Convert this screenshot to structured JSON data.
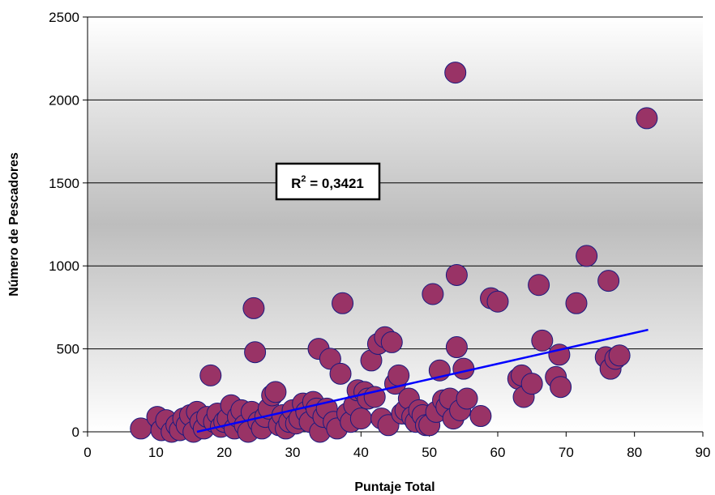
{
  "chart_data": {
    "type": "scatter",
    "xlabel": "Puntaje Total",
    "ylabel": "Número de Pescadores",
    "xlim": [
      0,
      90
    ],
    "ylim": [
      0,
      2500
    ],
    "x_ticks": [
      "0",
      "10",
      "20",
      "30",
      "40",
      "50",
      "60",
      "70",
      "80",
      "90"
    ],
    "y_ticks": [
      "0",
      "500",
      "1000",
      "1500",
      "2000",
      "2500"
    ],
    "grid": "horizontal",
    "annotation": {
      "r2_label": "R",
      "r2_exp": "2",
      "r2_value": " = 0,3421"
    },
    "colors": {
      "marker": "#993366",
      "marker_edge": "#1a1a80",
      "trendline": "#0000ff"
    },
    "trendline": {
      "x": [
        16,
        82
      ],
      "y": [
        0,
        615
      ]
    },
    "points": [
      [
        7.8,
        20
      ],
      [
        10.2,
        90
      ],
      [
        10.8,
        10
      ],
      [
        11.5,
        70
      ],
      [
        12.3,
        0
      ],
      [
        13,
        40
      ],
      [
        13.5,
        10
      ],
      [
        14,
        80
      ],
      [
        14.5,
        40
      ],
      [
        15,
        100
      ],
      [
        15.5,
        0
      ],
      [
        16,
        120
      ],
      [
        16.5,
        60
      ],
      [
        17,
        20
      ],
      [
        17.5,
        90
      ],
      [
        18,
        340
      ],
      [
        18.5,
        60
      ],
      [
        19,
        110
      ],
      [
        19.5,
        30
      ],
      [
        20,
        60
      ],
      [
        20.5,
        80
      ],
      [
        21,
        160
      ],
      [
        21.5,
        20
      ],
      [
        22,
        90
      ],
      [
        22.5,
        130
      ],
      [
        23,
        40
      ],
      [
        23.5,
        0
      ],
      [
        24,
        120
      ],
      [
        24.3,
        745
      ],
      [
        24.5,
        480
      ],
      [
        25,
        60
      ],
      [
        25.5,
        20
      ],
      [
        26,
        90
      ],
      [
        26.5,
        140
      ],
      [
        27,
        220
      ],
      [
        27.5,
        240
      ],
      [
        28,
        40
      ],
      [
        28.5,
        100
      ],
      [
        29,
        20
      ],
      [
        29.5,
        60
      ],
      [
        30,
        130
      ],
      [
        30.5,
        50
      ],
      [
        31,
        80
      ],
      [
        31.5,
        170
      ],
      [
        32,
        120
      ],
      [
        32.5,
        60
      ],
      [
        33,
        180
      ],
      [
        33.5,
        140
      ],
      [
        33.8,
        500
      ],
      [
        34,
        0
      ],
      [
        34.5,
        90
      ],
      [
        35,
        140
      ],
      [
        35.5,
        440
      ],
      [
        36,
        60
      ],
      [
        36.5,
        20
      ],
      [
        37,
        350
      ],
      [
        37.3,
        775
      ],
      [
        38,
        110
      ],
      [
        38.5,
        60
      ],
      [
        39,
        160
      ],
      [
        39.5,
        250
      ],
      [
        40,
        80
      ],
      [
        40.5,
        240
      ],
      [
        41,
        200
      ],
      [
        41.5,
        430
      ],
      [
        42,
        210
      ],
      [
        42.5,
        530
      ],
      [
        43,
        80
      ],
      [
        43.5,
        570
      ],
      [
        44,
        40
      ],
      [
        44.5,
        540
      ],
      [
        45,
        290
      ],
      [
        45.5,
        340
      ],
      [
        46,
        110
      ],
      [
        46.5,
        130
      ],
      [
        47,
        200
      ],
      [
        47.5,
        90
      ],
      [
        48,
        60
      ],
      [
        48.5,
        130
      ],
      [
        49,
        100
      ],
      [
        49.5,
        40
      ],
      [
        50,
        40
      ],
      [
        50.5,
        830
      ],
      [
        51,
        120
      ],
      [
        51.5,
        370
      ],
      [
        52,
        190
      ],
      [
        52.5,
        150
      ],
      [
        53,
        200
      ],
      [
        53.5,
        80
      ],
      [
        53.8,
        2165
      ],
      [
        54,
        510
      ],
      [
        54,
        945
      ],
      [
        54.5,
        130
      ],
      [
        55,
        380
      ],
      [
        55.5,
        200
      ],
      [
        57.5,
        95
      ],
      [
        59,
        805
      ],
      [
        60,
        785
      ],
      [
        63,
        320
      ],
      [
        63.5,
        340
      ],
      [
        63.8,
        210
      ],
      [
        65,
        290
      ],
      [
        66,
        885
      ],
      [
        66.5,
        550
      ],
      [
        68.5,
        330
      ],
      [
        69,
        465
      ],
      [
        69.2,
        270
      ],
      [
        71.5,
        775
      ],
      [
        73,
        1060
      ],
      [
        75.8,
        450
      ],
      [
        76.2,
        910
      ],
      [
        76.5,
        380
      ],
      [
        77.2,
        440
      ],
      [
        77.8,
        460
      ],
      [
        81.8,
        1890
      ]
    ]
  }
}
